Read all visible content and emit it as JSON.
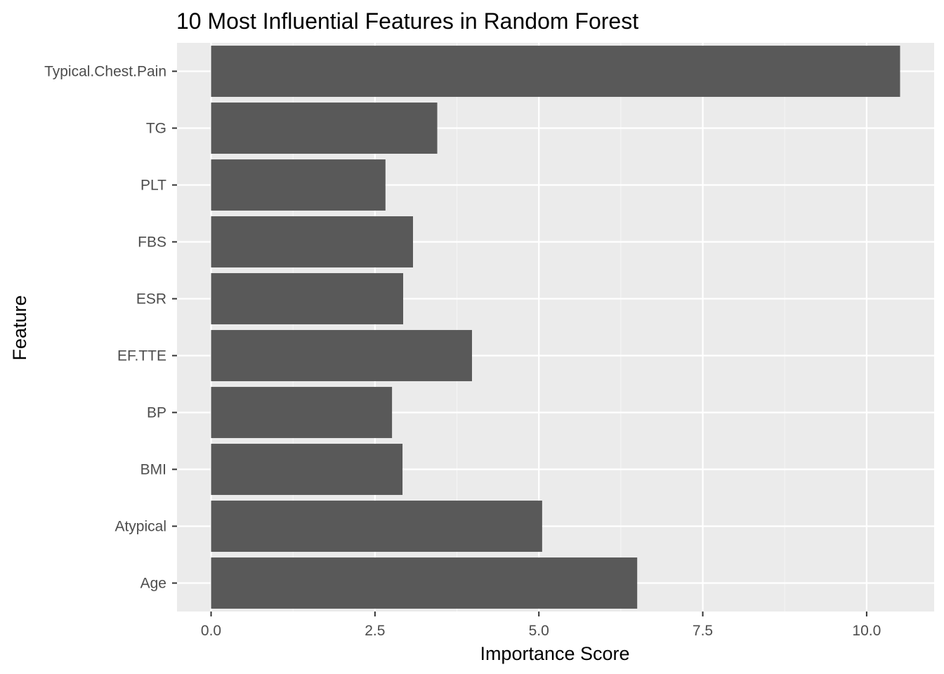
{
  "chart_data": {
    "type": "bar",
    "orientation": "horizontal",
    "title": "10 Most Influential Features in Random Forest",
    "xlabel": "Importance Score",
    "ylabel": "Feature",
    "categories": [
      "Age",
      "Atypical",
      "BMI",
      "BP",
      "EF.TTE",
      "ESR",
      "FBS",
      "PLT",
      "TG",
      "Typical.Chest.Pain"
    ],
    "values": [
      6.5,
      5.05,
      2.92,
      2.76,
      3.98,
      2.93,
      3.08,
      2.66,
      3.45,
      10.51
    ],
    "xlim": [
      -0.52,
      11.03
    ],
    "x_ticks": [
      0.0,
      2.5,
      5.0,
      7.5,
      10.0
    ],
    "x_tick_labels": [
      "0.0",
      "2.5",
      "5.0",
      "7.5",
      "10.0"
    ],
    "grid": true,
    "legend": "none",
    "colors": {
      "bar": "#595959",
      "panel": "#ebebeb",
      "grid_major": "#ffffff",
      "grid_minor": "#f5f5f5",
      "tick": "#333333",
      "tick_label": "#4d4d4d"
    }
  }
}
